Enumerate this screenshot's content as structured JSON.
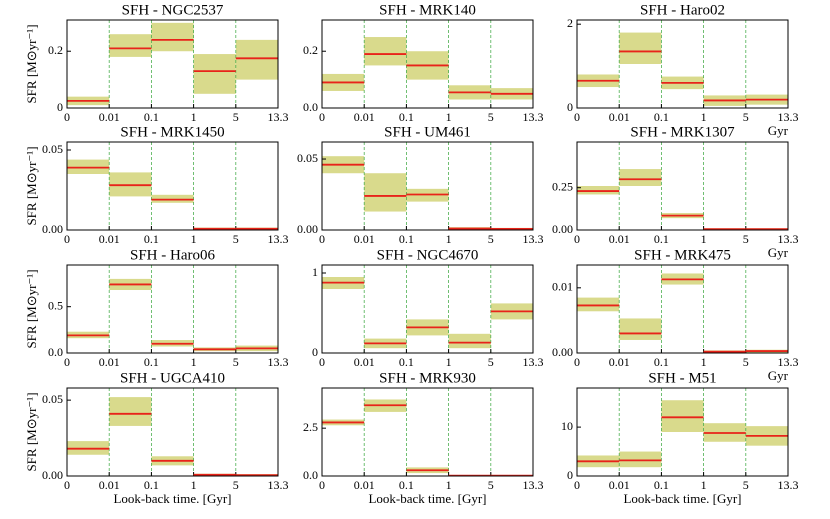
{
  "chart_data": [
    {
      "type": "step-band",
      "title": "SFH - NGC2537",
      "ylabel": "SFR [M⊙yr⁻¹]",
      "edges": [
        "0",
        "0.01",
        "0.1",
        "1",
        "5",
        "13.3"
      ],
      "values": [
        0.025,
        0.21,
        0.24,
        0.13,
        0.175
      ],
      "lower": [
        0.01,
        0.18,
        0.2,
        0.05,
        0.1
      ],
      "upper": [
        0.04,
        0.26,
        0.3,
        0.19,
        0.24
      ],
      "ylim": [
        0,
        0.31
      ],
      "yticks": [
        0,
        0.2
      ],
      "color": "#e8231a",
      "band_color": "#d9da8c",
      "grid": true
    },
    {
      "type": "step-band",
      "title": "SFH - MRK140",
      "edges": [
        "0",
        "0.01",
        "0.1",
        "1",
        "5",
        "13.3"
      ],
      "values": [
        0.09,
        0.19,
        0.15,
        0.055,
        0.05
      ],
      "lower": [
        0.06,
        0.15,
        0.1,
        0.03,
        0.03
      ],
      "upper": [
        0.12,
        0.25,
        0.2,
        0.08,
        0.07
      ],
      "ylim": [
        0,
        0.31
      ],
      "yticks": [
        {
          "value": 0,
          "label": "0.0"
        },
        0.2
      ],
      "color": "#e8231a",
      "band_color": "#d9da8c",
      "grid": true
    },
    {
      "type": "step-band",
      "title": "SFH - Haro02",
      "xlabel": "Gyr",
      "edges": [
        "0",
        "0.01",
        "0.1",
        "1",
        "5",
        "13.3"
      ],
      "values": [
        0.65,
        1.35,
        0.6,
        0.18,
        0.2
      ],
      "lower": [
        0.5,
        1.05,
        0.45,
        0.05,
        0.08
      ],
      "upper": [
        0.8,
        1.8,
        0.75,
        0.3,
        0.32
      ],
      "ylim": [
        0,
        2.1
      ],
      "yticks": [
        0,
        2
      ],
      "color": "#e8231a",
      "band_color": "#d9da8c",
      "grid": true
    },
    {
      "type": "step-band",
      "title": "SFH - MRK1450",
      "ylabel": "SFR [M⊙yr⁻¹]",
      "edges": [
        "0",
        "0.01",
        "0.1",
        "1",
        "5",
        "13.3"
      ],
      "values": [
        0.039,
        0.028,
        0.019,
        0.0008,
        0.0008
      ],
      "lower": [
        0.035,
        0.021,
        0.017,
        0,
        0
      ],
      "upper": [
        0.044,
        0.036,
        0.022,
        0.0015,
        0.0015
      ],
      "ylim": [
        0,
        0.055
      ],
      "yticks": [
        {
          "value": 0,
          "label": "0.00"
        },
        0.05
      ],
      "color": "#e8231a",
      "band_color": "#d9da8c",
      "grid": true
    },
    {
      "type": "step-band",
      "title": "SFH - UM461",
      "edges": [
        "0",
        "0.01",
        "0.1",
        "1",
        "5",
        "13.3"
      ],
      "values": [
        0.046,
        0.024,
        0.025,
        0.001,
        0.0008
      ],
      "lower": [
        0.04,
        0.013,
        0.02,
        0,
        0
      ],
      "upper": [
        0.052,
        0.04,
        0.029,
        0.002,
        0.0015
      ],
      "ylim": [
        0,
        0.062
      ],
      "yticks": [
        {
          "value": 0,
          "label": "0.00"
        },
        0.05
      ],
      "color": "#e8231a",
      "band_color": "#d9da8c",
      "grid": true
    },
    {
      "type": "step-band",
      "title": "SFH - MRK1307",
      "xlabel": "Gyr",
      "edges": [
        "0",
        "0.01",
        "0.1",
        "1",
        "5",
        "13.3"
      ],
      "values": [
        0.23,
        0.3,
        0.085,
        0.005,
        0.005
      ],
      "lower": [
        0.21,
        0.26,
        0.07,
        0,
        0
      ],
      "upper": [
        0.26,
        0.36,
        0.1,
        0.01,
        0.01
      ],
      "ylim": [
        0,
        0.52
      ],
      "yticks": [
        {
          "value": 0,
          "label": "0.00"
        },
        0.25
      ],
      "color": "#e8231a",
      "band_color": "#d9da8c",
      "grid": true
    },
    {
      "type": "step-band",
      "title": "SFH - Haro06",
      "ylabel": "SFR [M⊙yr⁻¹]",
      "edges": [
        "0",
        "0.01",
        "0.1",
        "1",
        "5",
        "13.3"
      ],
      "values": [
        0.19,
        0.74,
        0.1,
        0.04,
        0.05
      ],
      "lower": [
        0.16,
        0.68,
        0.07,
        0.02,
        0.02
      ],
      "upper": [
        0.23,
        0.8,
        0.14,
        0.06,
        0.08
      ],
      "ylim": [
        0,
        0.95
      ],
      "yticks": [
        {
          "value": 0,
          "label": "0.0"
        },
        0.5
      ],
      "color": "#e8231a",
      "band_color": "#d9da8c",
      "grid": true
    },
    {
      "type": "step-band",
      "title": "SFH - NGC4670",
      "edges": [
        "0",
        "0.01",
        "0.1",
        "1",
        "5",
        "13.3"
      ],
      "values": [
        0.88,
        0.12,
        0.32,
        0.13,
        0.52
      ],
      "lower": [
        0.8,
        0.06,
        0.22,
        0.06,
        0.42
      ],
      "upper": [
        0.95,
        0.18,
        0.42,
        0.24,
        0.62
      ],
      "ylim": [
        0,
        1.1
      ],
      "yticks": [
        0,
        1
      ],
      "color": "#e8231a",
      "band_color": "#d9da8c",
      "grid": true
    },
    {
      "type": "step-band",
      "title": "SFH - MRK475",
      "xlabel": "Gyr",
      "edges": [
        "0",
        "0.01",
        "0.1",
        "1",
        "5",
        "13.3"
      ],
      "values": [
        0.0073,
        0.003,
        0.0113,
        0.0002,
        0.0003
      ],
      "lower": [
        0.0064,
        0.002,
        0.0105,
        0,
        0
      ],
      "upper": [
        0.0085,
        0.0053,
        0.0122,
        0.0004,
        0.0005
      ],
      "ylim": [
        0,
        0.0135
      ],
      "yticks": [
        {
          "value": 0,
          "label": "0.00"
        },
        0.01
      ],
      "color": "#e8231a",
      "band_color": "#d9da8c",
      "grid": true
    },
    {
      "type": "step-band",
      "title": "SFH - UGCA410",
      "ylabel": "SFR [M⊙yr⁻¹]",
      "xlabel": "Look-back time. [Gyr]",
      "edges": [
        "0",
        "0.01",
        "0.1",
        "1",
        "5",
        "13.3"
      ],
      "values": [
        0.018,
        0.041,
        0.01,
        0.0008,
        0.0006
      ],
      "lower": [
        0.014,
        0.033,
        0.007,
        0,
        0
      ],
      "upper": [
        0.023,
        0.052,
        0.013,
        0.0015,
        0.0012
      ],
      "ylim": [
        0,
        0.058
      ],
      "yticks": [
        {
          "value": 0,
          "label": "0.00"
        },
        0.05
      ],
      "color": "#e8231a",
      "band_color": "#d9da8c",
      "grid": true
    },
    {
      "type": "step-band",
      "title": "SFH - MRK930",
      "xlabel": "Look-back time. [Gyr]",
      "edges": [
        "0",
        "0.01",
        "0.1",
        "1",
        "5",
        "13.3"
      ],
      "values": [
        2.8,
        3.7,
        0.3,
        0.02,
        0.02
      ],
      "lower": [
        2.65,
        3.35,
        0.15,
        0,
        0
      ],
      "upper": [
        2.95,
        4.0,
        0.45,
        0.05,
        0.05
      ],
      "ylim": [
        0,
        4.6
      ],
      "yticks": [
        {
          "value": 0,
          "label": "0.0"
        },
        2.5
      ],
      "color": "#e8231a",
      "band_color": "#d9da8c",
      "grid": true
    },
    {
      "type": "step-band",
      "title": "SFH - M51",
      "xlabel": "Look-back time. [Gyr]",
      "edges": [
        "0",
        "0.01",
        "0.1",
        "1",
        "5",
        "13.3"
      ],
      "values": [
        3,
        3.2,
        12,
        8.8,
        8.2
      ],
      "lower": [
        1.8,
        1.8,
        9,
        7,
        6.2
      ],
      "upper": [
        4.2,
        5,
        15.5,
        10.8,
        10.2
      ],
      "ylim": [
        0,
        18
      ],
      "yticks": [
        0,
        10
      ],
      "color": "#e8231a",
      "band_color": "#d9da8c",
      "grid": true
    }
  ]
}
